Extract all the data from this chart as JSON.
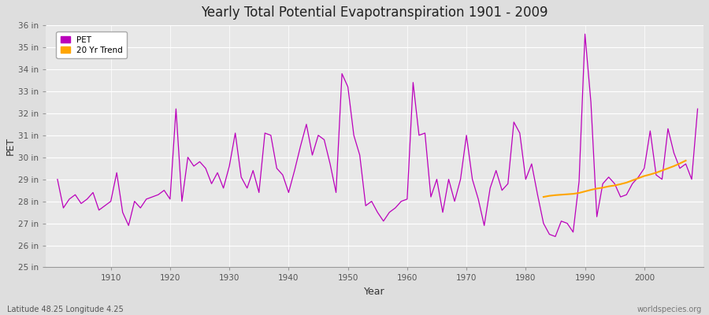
{
  "title": "Yearly Total Potential Evapotranspiration 1901 - 2009",
  "xlabel": "Year",
  "ylabel": "PET",
  "footnote_left": "Latitude 48.25 Longitude 4.25",
  "footnote_right": "worldspecies.org",
  "pet_color": "#BB00BB",
  "trend_color": "#FFA500",
  "fig_bg": "#DEDEDE",
  "plot_bg": "#E8E8E8",
  "ylim": [
    25,
    36
  ],
  "yticks": [
    25,
    26,
    27,
    28,
    29,
    30,
    31,
    32,
    33,
    34,
    35,
    36
  ],
  "ytick_labels": [
    "25 in",
    "26 in",
    "27 in",
    "28 in",
    "29 in",
    "30 in",
    "31 in",
    "32 in",
    "33 in",
    "34 in",
    "35 in",
    "36 in"
  ],
  "xlim": [
    1899,
    2010
  ],
  "xticks": [
    1910,
    1920,
    1930,
    1940,
    1950,
    1960,
    1970,
    1980,
    1990,
    2000
  ],
  "years": [
    1901,
    1902,
    1903,
    1904,
    1905,
    1906,
    1907,
    1908,
    1909,
    1910,
    1911,
    1912,
    1913,
    1914,
    1915,
    1916,
    1917,
    1918,
    1919,
    1920,
    1921,
    1922,
    1923,
    1924,
    1925,
    1926,
    1927,
    1928,
    1929,
    1930,
    1931,
    1932,
    1933,
    1934,
    1935,
    1936,
    1937,
    1938,
    1939,
    1940,
    1941,
    1942,
    1943,
    1944,
    1945,
    1946,
    1947,
    1948,
    1949,
    1950,
    1951,
    1952,
    1953,
    1954,
    1955,
    1956,
    1957,
    1958,
    1959,
    1960,
    1961,
    1962,
    1963,
    1964,
    1965,
    1966,
    1967,
    1968,
    1969,
    1970,
    1971,
    1972,
    1973,
    1974,
    1975,
    1976,
    1977,
    1978,
    1979,
    1980,
    1981,
    1982,
    1983,
    1984,
    1985,
    1986,
    1987,
    1988,
    1989,
    1990,
    1991,
    1992,
    1993,
    1994,
    1995,
    1996,
    1997,
    1998,
    1999,
    2000,
    2001,
    2002,
    2003,
    2004,
    2005,
    2006,
    2007,
    2008,
    2009
  ],
  "pet_values": [
    29.0,
    27.7,
    28.1,
    28.3,
    27.9,
    28.1,
    28.4,
    27.6,
    27.8,
    28.0,
    29.3,
    27.5,
    26.9,
    28.0,
    27.7,
    28.1,
    28.2,
    28.3,
    28.5,
    28.1,
    32.2,
    28.0,
    30.0,
    29.6,
    29.8,
    29.5,
    28.8,
    29.3,
    28.6,
    29.6,
    31.1,
    29.1,
    28.6,
    29.4,
    28.4,
    31.1,
    31.0,
    29.5,
    29.2,
    28.4,
    29.4,
    30.5,
    31.5,
    30.1,
    31.0,
    30.8,
    29.7,
    28.4,
    33.8,
    33.2,
    31.0,
    30.1,
    27.8,
    28.0,
    27.5,
    27.1,
    27.5,
    27.7,
    28.0,
    28.1,
    33.4,
    31.0,
    31.1,
    28.2,
    29.0,
    27.5,
    29.0,
    28.0,
    29.0,
    31.0,
    29.0,
    28.1,
    26.9,
    28.6,
    29.4,
    28.5,
    28.8,
    31.6,
    31.1,
    29.0,
    29.7,
    28.3,
    27.0,
    26.5,
    26.4,
    27.1,
    27.0,
    26.6,
    28.9,
    35.6,
    32.5,
    27.3,
    28.8,
    29.1,
    28.8,
    28.2,
    28.3,
    28.8,
    29.1,
    29.5,
    31.2,
    29.2,
    29.0,
    31.3,
    30.2,
    29.5,
    29.7,
    29.0,
    32.2
  ],
  "trend_years": [
    1983,
    1984,
    1985,
    1986,
    1987,
    1988,
    1989,
    1990,
    1991,
    1992,
    1993,
    1994,
    1995,
    1996,
    1997,
    1998,
    1999,
    2000,
    2001,
    2002,
    2003,
    2004,
    2005,
    2006,
    2007
  ],
  "trend_values": [
    28.2,
    28.25,
    28.28,
    28.3,
    28.32,
    28.34,
    28.38,
    28.45,
    28.52,
    28.58,
    28.62,
    28.68,
    28.72,
    28.78,
    28.85,
    28.95,
    29.05,
    29.15,
    29.22,
    29.3,
    29.4,
    29.5,
    29.6,
    29.72,
    29.85
  ]
}
